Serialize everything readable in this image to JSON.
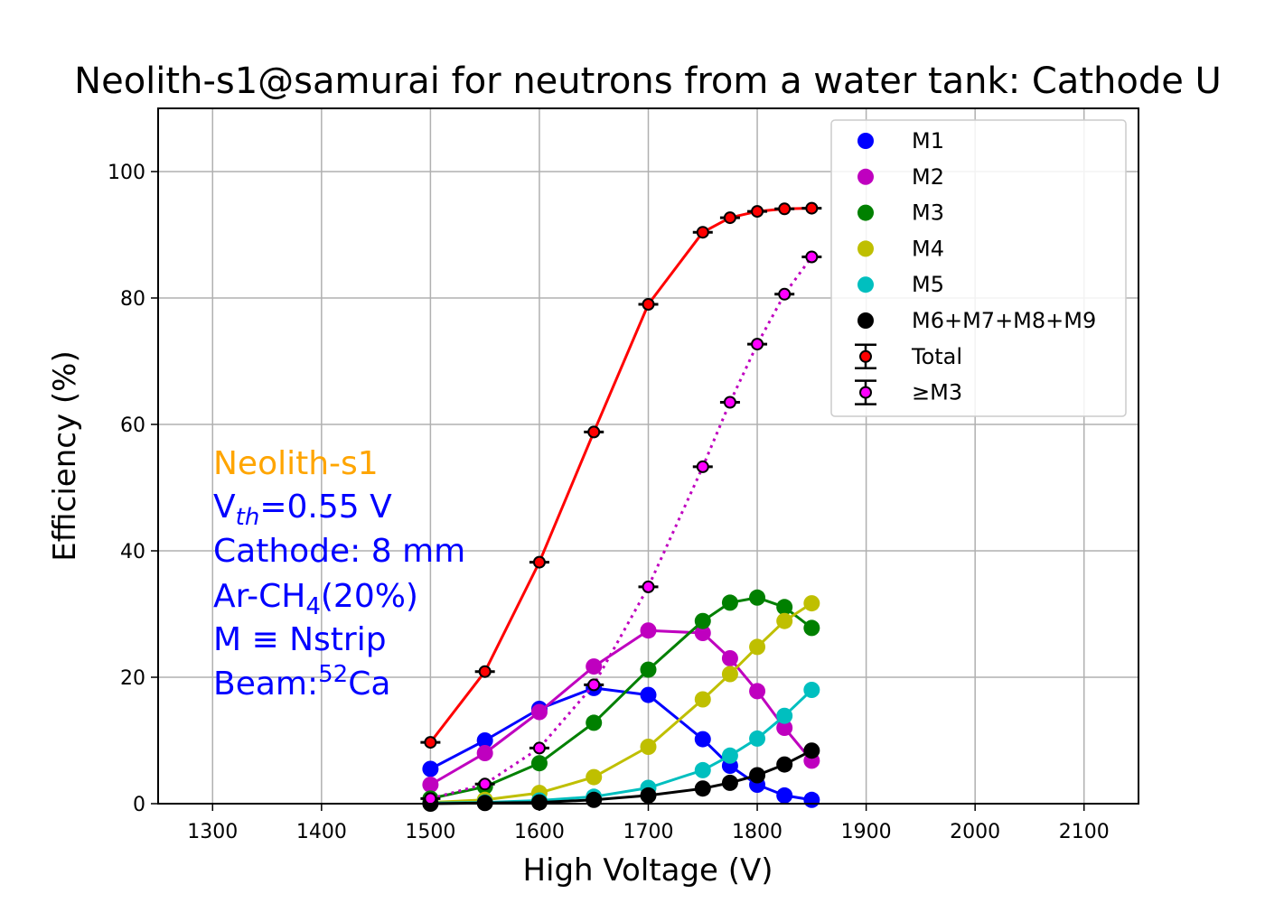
{
  "chart_data": {
    "type": "line",
    "title": "Neolith-s1@samurai for neutrons from a water tank: Cathode U",
    "xlabel": "High Voltage (V)",
    "ylabel": "Efficiency (%)",
    "xlim": [
      1250,
      2150
    ],
    "ylim": [
      0,
      110
    ],
    "xticks": [
      1300,
      1400,
      1500,
      1600,
      1700,
      1800,
      1900,
      2000,
      2100
    ],
    "yticks": [
      0,
      20,
      40,
      60,
      80,
      100
    ],
    "grid": true,
    "legend_position": "upper right",
    "series": [
      {
        "name": "M1",
        "color": "#0000ff",
        "style": "solid",
        "marker": "dot",
        "x": [
          1500,
          1550,
          1600,
          1650,
          1700,
          1750,
          1775,
          1800,
          1825,
          1850
        ],
        "y": [
          5.5,
          10,
          15,
          18.3,
          17.2,
          10.2,
          6,
          3,
          1.3,
          0.6
        ]
      },
      {
        "name": "M2",
        "color": "#bf00bf",
        "style": "solid",
        "marker": "dot",
        "x": [
          1500,
          1550,
          1600,
          1650,
          1700,
          1750,
          1775,
          1800,
          1825,
          1850
        ],
        "y": [
          3,
          8,
          14.5,
          21.7,
          27.4,
          27,
          23,
          17.8,
          12,
          6.8
        ]
      },
      {
        "name": "M3",
        "color": "#008000",
        "style": "solid",
        "marker": "dot",
        "x": [
          1500,
          1550,
          1600,
          1650,
          1700,
          1750,
          1775,
          1800,
          1825,
          1850
        ],
        "y": [
          0.8,
          2.7,
          6.4,
          12.8,
          21.2,
          28.9,
          31.8,
          32.6,
          31.1,
          27.8
        ]
      },
      {
        "name": "M4",
        "color": "#bfbf00",
        "style": "solid",
        "marker": "dot",
        "x": [
          1500,
          1550,
          1600,
          1650,
          1700,
          1750,
          1775,
          1800,
          1825,
          1850
        ],
        "y": [
          0.2,
          0.6,
          1.7,
          4.2,
          9,
          16.5,
          20.5,
          24.8,
          28.9,
          31.7
        ]
      },
      {
        "name": "M5",
        "color": "#00bfbf",
        "style": "solid",
        "marker": "dot",
        "x": [
          1500,
          1550,
          1600,
          1650,
          1700,
          1750,
          1775,
          1800,
          1825,
          1850
        ],
        "y": [
          0.1,
          0.2,
          0.5,
          1.1,
          2.5,
          5.3,
          7.6,
          10.3,
          13.9,
          18
        ]
      },
      {
        "name": "M6+M7+M8+M9",
        "color": "#000000",
        "style": "solid",
        "marker": "dot",
        "x": [
          1500,
          1550,
          1600,
          1650,
          1700,
          1750,
          1775,
          1800,
          1825,
          1850
        ],
        "y": [
          0,
          0.1,
          0.2,
          0.6,
          1.3,
          2.4,
          3.3,
          4.5,
          6.2,
          8.4
        ]
      },
      {
        "name": "Total",
        "color": "#ff0000",
        "style": "solid",
        "marker": "errorbar",
        "x": [
          1500,
          1550,
          1600,
          1650,
          1700,
          1750,
          1775,
          1800,
          1825,
          1850
        ],
        "y": [
          9.7,
          20.9,
          38.2,
          58.8,
          79,
          90.4,
          92.7,
          93.7,
          94.1,
          94.2
        ]
      },
      {
        "name": "≥M3",
        "color": "#ff00ff",
        "line_color": "#bf00bf",
        "style": "dotted",
        "marker": "errorbar",
        "x": [
          1500,
          1550,
          1600,
          1650,
          1700,
          1750,
          1775,
          1800,
          1825,
          1850
        ],
        "y": [
          0.8,
          3.1,
          8.8,
          18.8,
          34.3,
          53.3,
          63.5,
          72.7,
          80.6,
          86.5
        ]
      }
    ],
    "annotations": {
      "line1": {
        "text": "Neolith-s1",
        "color": "#ffa500"
      },
      "line2_prefix": "V",
      "line2_sub": "th",
      "line2_suffix": "=0.55 V",
      "line3": "Cathode: 8 mm",
      "line4_prefix": "Ar-CH",
      "line4_sub": "4",
      "line4_suffix": "(20%)",
      "line5": "M ≡ Nstrip",
      "line6_prefix": "Beam:",
      "line6_sup": "52",
      "line6_suffix": "Ca",
      "color": "#0000ff"
    }
  }
}
